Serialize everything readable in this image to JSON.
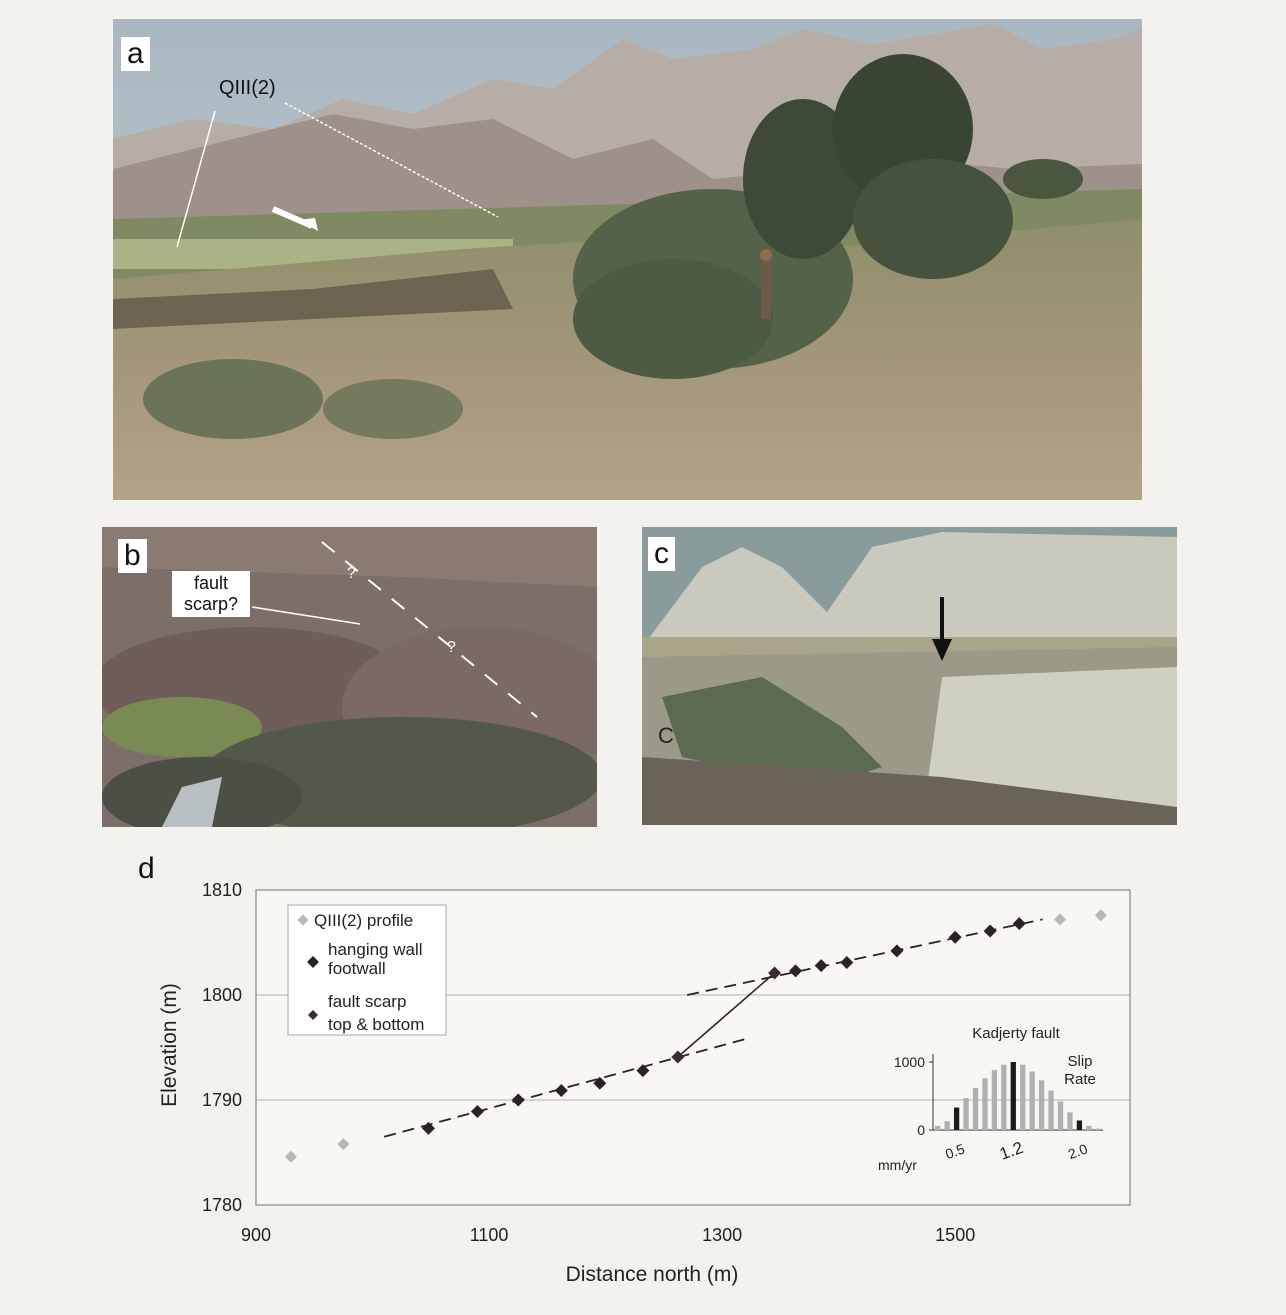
{
  "panels": {
    "a": {
      "letter": "a",
      "label_qiii": "QIII(2)"
    },
    "b": {
      "letter": "b",
      "scarp_label_1": "fault",
      "scarp_label_2": "scarp?",
      "question_mark": "?"
    },
    "c": {
      "letter": "c",
      "marker": "C"
    },
    "d": {
      "letter": "d"
    }
  },
  "colors": {
    "qiii_profile": "#b8b8b8",
    "hanging_footwall": "#2a2228",
    "scarp_points": "#3a2a34",
    "histogram_grey": "#b0b0b0",
    "histogram_black": "#1a1a1a"
  },
  "chart_data": [
    {
      "type": "scatter",
      "xlabel": "Distance north (m)",
      "ylabel": "Elevation (m)",
      "xlim": [
        900,
        1650
      ],
      "ylim": [
        1780,
        1810
      ],
      "xticks": [
        900,
        1100,
        1300,
        1500
      ],
      "yticks": [
        1780,
        1790,
        1800,
        1810
      ],
      "grid": "horizontal",
      "legend_position": "top-left",
      "legend": [
        {
          "label": "QIII(2) profile"
        },
        {
          "label_line1": "hanging wall",
          "label_line2": "footwall"
        },
        {
          "label_line1": "fault scarp",
          "label_line2": "top & bottom"
        }
      ],
      "series": [
        {
          "name": "QIII(2) profile",
          "color": "#b8b8b8",
          "points": [
            [
              930,
              1784.6
            ],
            [
              975,
              1785.8
            ],
            [
              1590,
              1807.2
            ],
            [
              1625,
              1807.6
            ]
          ]
        },
        {
          "name": "hanging wall / footwall",
          "color": "#2a2228",
          "points": [
            [
              1048,
              1787.3
            ],
            [
              1090,
              1788.9
            ],
            [
              1125,
              1790.0
            ],
            [
              1162,
              1790.9
            ],
            [
              1195,
              1791.6
            ],
            [
              1232,
              1792.8
            ],
            [
              1363,
              1802.3
            ],
            [
              1385,
              1802.8
            ],
            [
              1407,
              1803.1
            ],
            [
              1450,
              1804.2
            ],
            [
              1500,
              1805.5
            ],
            [
              1530,
              1806.1
            ],
            [
              1555,
              1806.8
            ]
          ]
        },
        {
          "name": "fault scarp top & bottom",
          "color": "#3a2a34",
          "points": [
            [
              1262,
              1794.1
            ],
            [
              1345,
              1802.1
            ]
          ]
        }
      ],
      "fit_lines": [
        {
          "name": "footwall fit",
          "from": [
            1010,
            1786.5
          ],
          "to": [
            1320,
            1795.8
          ]
        },
        {
          "name": "hanging wall fit",
          "from": [
            1270,
            1800.0
          ],
          "to": [
            1575,
            1807.2
          ]
        },
        {
          "name": "scarp",
          "from": [
            1262,
            1794.1
          ],
          "to": [
            1345,
            1802.1
          ]
        }
      ]
    },
    {
      "type": "bar",
      "title": "Kadjerty fault",
      "annotation_1": "Slip",
      "annotation_2": "Rate",
      "xlabel": "mm/yr",
      "xticklabels": [
        "0.5",
        "1.2",
        "2.0"
      ],
      "ylim": [
        0,
        1000
      ],
      "yticks": [
        0,
        1000
      ],
      "values": [
        60,
        130,
        330,
        470,
        620,
        760,
        880,
        960,
        1000,
        960,
        860,
        730,
        580,
        420,
        260,
        140,
        60,
        20
      ],
      "highlight": [
        2,
        8,
        15
      ]
    }
  ]
}
